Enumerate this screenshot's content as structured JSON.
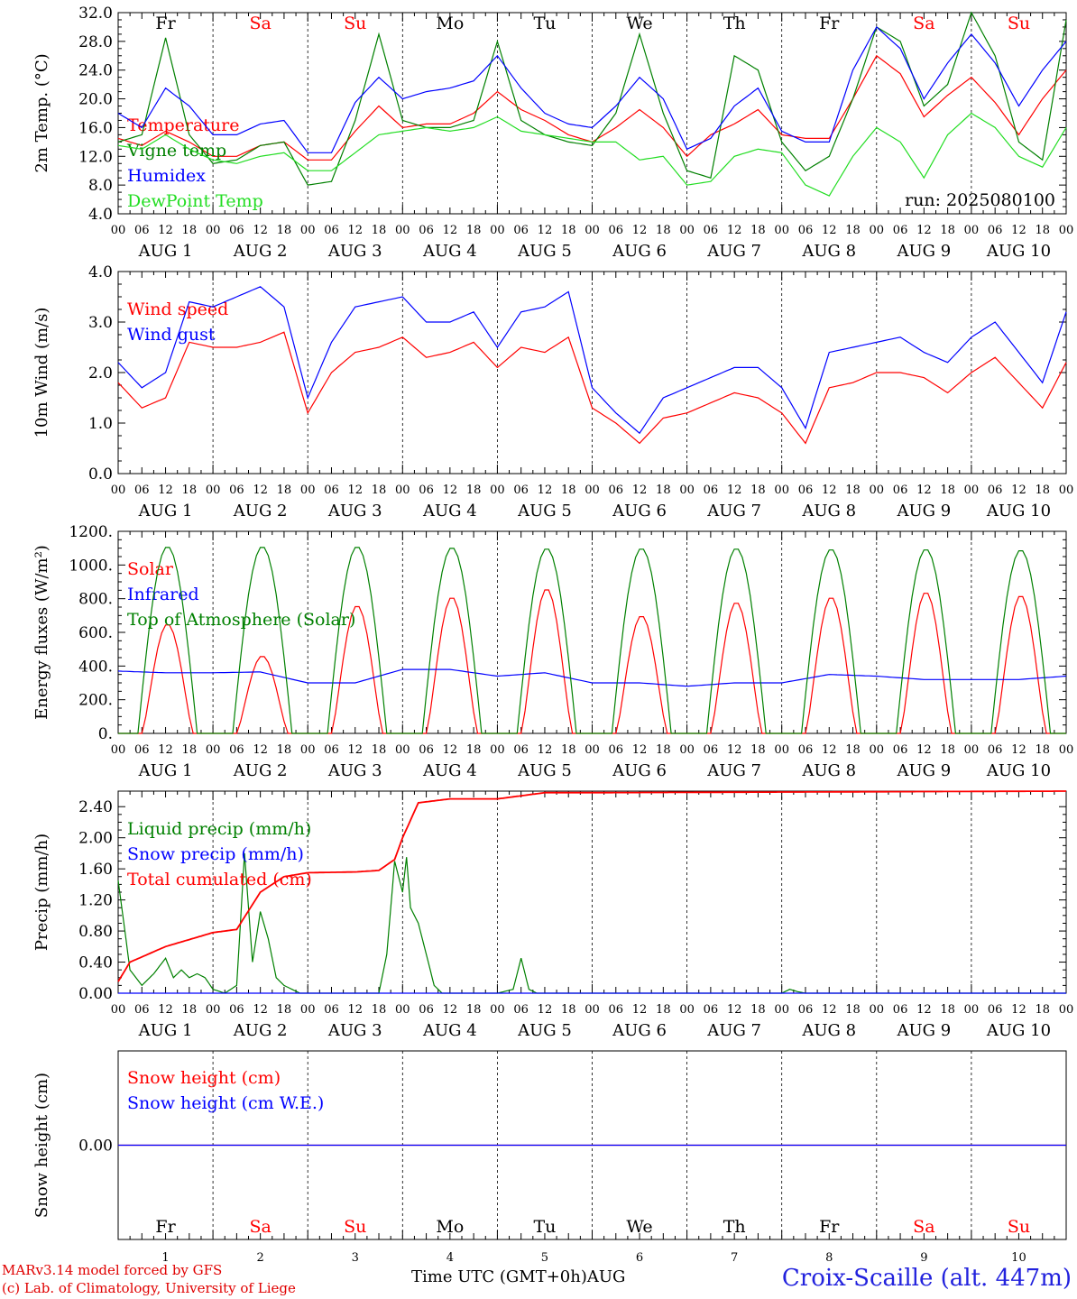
{
  "footer": {
    "model": "MARv3.14 model forced by GFS",
    "copyright": "(c) Lab. of Climatology, University of Liege",
    "axis_title": "Time UTC (GMT+0h)",
    "month": "AUG",
    "station": "Croix-Scaille (alt. 447m)"
  },
  "colors": {
    "red": "#ff0000",
    "blue": "#0000ff",
    "green": "#008000",
    "lightgreen": "#22dd22",
    "weekend": "#ff0000",
    "weekday": "#000000"
  },
  "days": {
    "names": [
      "Fr",
      "Sa",
      "Su",
      "Mo",
      "Tu",
      "We",
      "Th",
      "Fr",
      "Sa",
      "Su"
    ],
    "weekend": [
      false,
      true,
      true,
      false,
      false,
      false,
      false,
      false,
      true,
      true
    ],
    "numbers": [
      "1",
      "2",
      "3",
      "4",
      "5",
      "6",
      "7",
      "8",
      "9",
      "10"
    ],
    "date_labels": [
      "AUG  1",
      "AUG  2",
      "AUG  3",
      "AUG  4",
      "AUG  5",
      "AUG  6",
      "AUG  7",
      "AUG  8",
      "AUG  9",
      "AUG 10"
    ],
    "hour_labels": [
      "00",
      "06",
      "12",
      "18"
    ],
    "end_label": "00"
  },
  "chart_data": [
    {
      "type": "line",
      "ylabel": "2m Temp. (°C)",
      "ylim": [
        4,
        32
      ],
      "yticks": [
        "4.0",
        "8.0",
        "12.0",
        "16.0",
        "20.0",
        "24.0",
        "28.0",
        "32.0"
      ],
      "annotation": "run: 2025080100",
      "series": [
        {
          "name": "Temperature",
          "color": "#ff0000",
          "hours": [
            0,
            6,
            12,
            18,
            24,
            30,
            36,
            42,
            48,
            54,
            60,
            66,
            72,
            78,
            84,
            90,
            96,
            102,
            108,
            114,
            120,
            126,
            132,
            138,
            144,
            150,
            156,
            162,
            168,
            174,
            180,
            186,
            192,
            198,
            204,
            210,
            216,
            222,
            228,
            234,
            240
          ],
          "values": [
            14.5,
            13.5,
            15.5,
            14,
            12,
            12,
            13.5,
            14,
            11.5,
            11.5,
            15.5,
            19,
            16,
            16.5,
            16.5,
            18,
            21,
            18.5,
            17,
            15,
            14,
            16,
            18.5,
            16,
            12,
            15,
            16.5,
            18.5,
            15,
            14.5,
            14.5,
            20,
            26,
            23.5,
            17.5,
            20.5,
            23,
            19.5,
            15,
            20,
            24
          ]
        },
        {
          "name": "Vigne temp",
          "color": "#008000",
          "hours": [
            0,
            6,
            12,
            18,
            24,
            30,
            36,
            42,
            48,
            54,
            60,
            66,
            72,
            78,
            84,
            90,
            96,
            102,
            108,
            114,
            120,
            126,
            132,
            138,
            144,
            150,
            156,
            162,
            168,
            174,
            180,
            186,
            192,
            198,
            204,
            210,
            216,
            222,
            228,
            234,
            240
          ],
          "values": [
            14,
            15,
            28.5,
            15,
            11,
            11.5,
            13.5,
            14,
            8,
            8.5,
            17,
            29,
            17,
            16,
            16,
            17,
            28,
            17,
            15,
            14,
            13.5,
            18,
            29,
            18,
            10,
            9,
            26,
            24,
            14,
            10,
            12,
            20,
            30,
            28,
            19,
            22,
            32,
            26,
            14,
            11.5,
            31
          ]
        },
        {
          "name": "Humidex",
          "color": "#0000ff",
          "hours": [
            0,
            6,
            12,
            18,
            24,
            30,
            36,
            42,
            48,
            54,
            60,
            66,
            72,
            78,
            84,
            90,
            96,
            102,
            108,
            114,
            120,
            126,
            132,
            138,
            144,
            150,
            156,
            162,
            168,
            174,
            180,
            186,
            192,
            198,
            204,
            210,
            216,
            222,
            228,
            234,
            240
          ],
          "values": [
            18,
            16,
            21.5,
            19,
            15,
            15,
            16.5,
            17,
            12.5,
            12.5,
            19.5,
            23,
            20,
            21,
            21.5,
            22.5,
            26,
            21.5,
            18,
            16.5,
            16,
            19,
            23,
            20,
            13,
            14.5,
            19,
            21.5,
            15.5,
            14,
            14,
            24,
            30,
            27,
            20,
            25,
            29,
            25,
            19,
            24,
            28
          ]
        },
        {
          "name": "DewPoint Temp",
          "color": "#22dd22",
          "hours": [
            0,
            6,
            12,
            18,
            24,
            30,
            36,
            42,
            48,
            54,
            60,
            66,
            72,
            78,
            84,
            90,
            96,
            102,
            108,
            114,
            120,
            126,
            132,
            138,
            144,
            150,
            156,
            162,
            168,
            174,
            180,
            186,
            192,
            198,
            204,
            210,
            216,
            222,
            228,
            234,
            240
          ],
          "values": [
            13.5,
            13,
            15,
            13,
            11.5,
            11,
            12,
            12.5,
            10,
            10,
            12.5,
            15,
            15.5,
            16,
            15.5,
            16,
            17.5,
            15.5,
            15,
            14.5,
            14,
            14,
            11.5,
            12,
            8,
            8.5,
            12,
            13,
            12.5,
            8,
            6.5,
            12,
            16,
            14,
            9,
            15,
            18,
            16,
            12,
            10.5,
            16
          ]
        }
      ]
    },
    {
      "type": "line",
      "ylabel": "10m Wind (m/s)",
      "ylim": [
        0,
        4
      ],
      "yticks": [
        "0.0",
        "1.0",
        "2.0",
        "3.0",
        "4.0"
      ],
      "series": [
        {
          "name": "Wind speed",
          "color": "#ff0000",
          "hours": [
            0,
            6,
            12,
            18,
            24,
            30,
            36,
            42,
            48,
            54,
            60,
            66,
            72,
            78,
            84,
            90,
            96,
            102,
            108,
            114,
            120,
            126,
            132,
            138,
            144,
            150,
            156,
            162,
            168,
            174,
            180,
            186,
            192,
            198,
            204,
            210,
            216,
            222,
            228,
            234,
            240
          ],
          "values": [
            1.8,
            1.3,
            1.5,
            2.6,
            2.5,
            2.5,
            2.6,
            2.8,
            1.2,
            2.0,
            2.4,
            2.5,
            2.7,
            2.3,
            2.4,
            2.6,
            2.1,
            2.5,
            2.4,
            2.7,
            1.3,
            1.0,
            0.6,
            1.1,
            1.2,
            1.4,
            1.6,
            1.5,
            1.2,
            0.6,
            1.7,
            1.8,
            2.0,
            2.0,
            1.9,
            1.6,
            2.0,
            2.3,
            1.8,
            1.3,
            2.2
          ]
        },
        {
          "name": "Wind gust",
          "color": "#0000ff",
          "hours": [
            0,
            6,
            12,
            18,
            24,
            30,
            36,
            42,
            48,
            54,
            60,
            66,
            72,
            78,
            84,
            90,
            96,
            102,
            108,
            114,
            120,
            126,
            132,
            138,
            144,
            150,
            156,
            162,
            168,
            174,
            180,
            186,
            192,
            198,
            204,
            210,
            216,
            222,
            228,
            234,
            240
          ],
          "values": [
            2.2,
            1.7,
            2.0,
            3.4,
            3.3,
            3.5,
            3.7,
            3.3,
            1.5,
            2.6,
            3.3,
            3.4,
            3.5,
            3.0,
            3.0,
            3.2,
            2.5,
            3.2,
            3.3,
            3.6,
            1.7,
            1.2,
            0.8,
            1.5,
            1.7,
            1.9,
            2.1,
            2.1,
            1.7,
            0.9,
            2.4,
            2.5,
            2.6,
            2.7,
            2.4,
            2.2,
            2.7,
            3.0,
            2.4,
            1.8,
            3.2
          ]
        }
      ]
    },
    {
      "type": "line",
      "ylabel": "Energy fluxes (W/m²)",
      "ylim": [
        0,
        1200
      ],
      "yticks": [
        "0.",
        "200.",
        "400.",
        "600.",
        "800.",
        "1000.",
        "1200."
      ],
      "series": [
        {
          "name": "Solar",
          "color": "#ff0000",
          "day_peaks": [
            650,
            460,
            760,
            810,
            860,
            700,
            780,
            810,
            840,
            820
          ]
        },
        {
          "name": "Infrared",
          "color": "#0000ff",
          "hours": [
            0,
            12,
            24,
            36,
            48,
            60,
            72,
            84,
            96,
            108,
            120,
            132,
            144,
            156,
            168,
            180,
            192,
            204,
            216,
            228,
            240
          ],
          "values": [
            370,
            360,
            360,
            365,
            300,
            300,
            380,
            380,
            340,
            360,
            300,
            300,
            280,
            300,
            300,
            350,
            340,
            320,
            320,
            320,
            340
          ]
        },
        {
          "name": "Top of Atmosphere (Solar)",
          "color": "#008000",
          "day_peaks": [
            1110,
            1110,
            1110,
            1105,
            1100,
            1100,
            1100,
            1095,
            1095,
            1090
          ]
        }
      ]
    },
    {
      "type": "line",
      "ylabel": "Precip (mm/h)",
      "ylim": [
        0,
        2.6
      ],
      "yticks": [
        "0.00",
        "0.40",
        "0.80",
        "1.20",
        "1.60",
        "2.00",
        "2.40"
      ],
      "series": [
        {
          "name": "Liquid precip (mm/h)",
          "color": "#008000",
          "hours": [
            0,
            3,
            6,
            9,
            12,
            14,
            16,
            18,
            20,
            22,
            24,
            27,
            30,
            32,
            34,
            36,
            38,
            40,
            42,
            44,
            46,
            48,
            60,
            66,
            68,
            70,
            72,
            73,
            74,
            76,
            78,
            80,
            82,
            84,
            96,
            100,
            102,
            104,
            106,
            108,
            120,
            132,
            144,
            156,
            168,
            170,
            172,
            174,
            180,
            240
          ],
          "values": [
            1.45,
            0.3,
            0.1,
            0.25,
            0.45,
            0.2,
            0.3,
            0.2,
            0.25,
            0.2,
            0.05,
            0.0,
            0.1,
            1.8,
            0.4,
            1.05,
            0.7,
            0.2,
            0.1,
            0.05,
            0.0,
            0.0,
            0.0,
            0.0,
            0.5,
            1.7,
            1.3,
            1.75,
            1.1,
            0.9,
            0.5,
            0.1,
            0.0,
            0.0,
            0.0,
            0.05,
            0.45,
            0.05,
            0.0,
            0.0,
            0.0,
            0.0,
            0.0,
            0.0,
            0.0,
            0.05,
            0.02,
            0.0,
            0.0,
            0.0
          ]
        },
        {
          "name": "Snow precip (mm/h)",
          "color": "#0000ff",
          "hours": [
            0,
            240
          ],
          "values": [
            0,
            0
          ]
        },
        {
          "name": "Total cumulated (cm)",
          "color": "#ff0000",
          "hours": [
            0,
            3,
            12,
            24,
            30,
            36,
            42,
            48,
            60,
            66,
            70,
            72,
            76,
            84,
            96,
            102,
            108,
            120,
            240
          ],
          "values": [
            0.15,
            0.4,
            0.6,
            0.78,
            0.82,
            1.3,
            1.5,
            1.55,
            1.56,
            1.58,
            1.72,
            2.0,
            2.45,
            2.5,
            2.5,
            2.54,
            2.58,
            2.58,
            2.6
          ]
        }
      ]
    },
    {
      "type": "line",
      "ylabel": "Snow height (cm)",
      "ylim": [
        -1,
        1
      ],
      "yticks": [
        "0.00"
      ],
      "series": [
        {
          "name": "Snow height (cm)",
          "color": "#ff0000",
          "hours": [
            0,
            240
          ],
          "values": [
            0,
            0
          ]
        },
        {
          "name": "Snow height (cm W.E.)",
          "color": "#0000ff",
          "hours": [
            0,
            240
          ],
          "values": [
            0,
            0
          ]
        }
      ]
    }
  ]
}
